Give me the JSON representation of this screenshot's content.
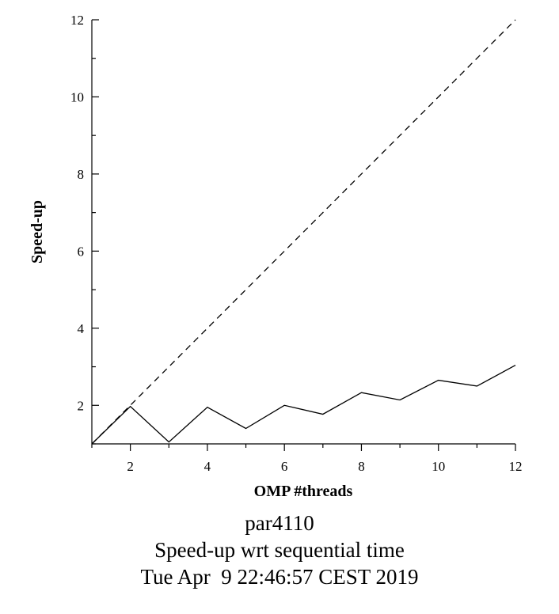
{
  "chart_data": {
    "type": "line",
    "xlabel": "OMP #threads",
    "ylabel": "Speed-up",
    "xlim": [
      1,
      12
    ],
    "ylim": [
      1,
      12
    ],
    "x_ticks": [
      2,
      4,
      6,
      8,
      10,
      12
    ],
    "y_ticks": [
      2,
      4,
      6,
      8,
      10,
      12
    ],
    "grid": false,
    "series": [
      {
        "style": "solid",
        "color": "#000000",
        "x": [
          1,
          2,
          3,
          4,
          5,
          6,
          7,
          8,
          9,
          10,
          11,
          12
        ],
        "y": [
          1.0,
          1.97,
          1.05,
          1.95,
          1.4,
          2.0,
          1.77,
          2.33,
          2.14,
          2.65,
          2.5,
          3.04
        ]
      },
      {
        "style": "dashed",
        "color": "#000000",
        "x": [
          1,
          12
        ],
        "y": [
          1,
          12
        ]
      }
    ]
  },
  "caption": {
    "line1": "par4110",
    "line2": "Speed-up wrt sequential time",
    "line3": "Tue Apr  9 22:46:57 CEST 2019"
  }
}
